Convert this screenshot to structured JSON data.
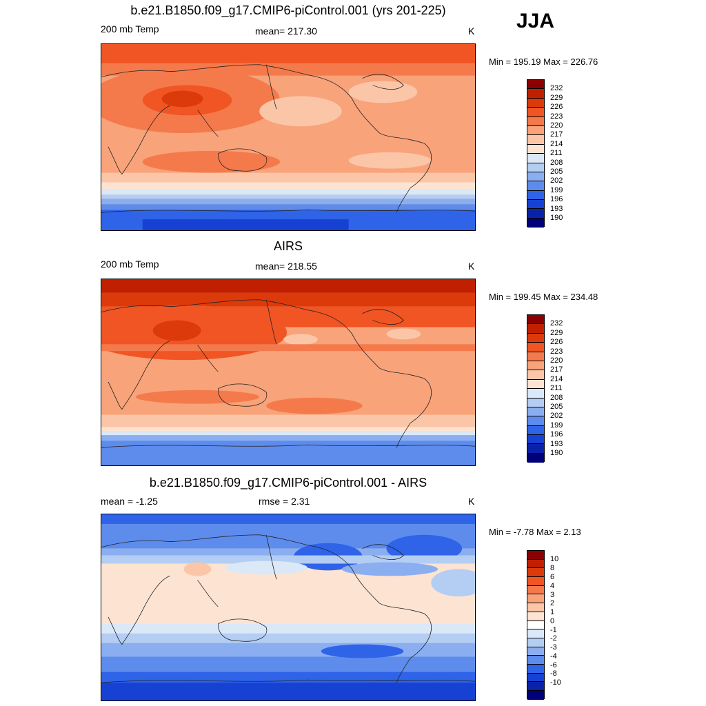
{
  "season": "JJA",
  "panels": [
    {
      "title": "b.e21.B1850.f09_g17.CMIP6-piControl.001 (yrs 201-225)",
      "left_label": "200 mb Temp",
      "center_label": "mean= 217.30",
      "units": "K",
      "minmax": "Min = 195.19 Max = 226.76",
      "colorbar_labels": [
        "232",
        "229",
        "226",
        "223",
        "220",
        "217",
        "214",
        "211",
        "208",
        "205",
        "202",
        "199",
        "196",
        "193",
        "190"
      ]
    },
    {
      "title": "AIRS",
      "left_label": "200 mb Temp",
      "center_label": "mean= 218.55",
      "units": "K",
      "minmax": "Min = 199.45 Max = 234.48",
      "colorbar_labels": [
        "232",
        "229",
        "226",
        "223",
        "220",
        "217",
        "214",
        "211",
        "208",
        "205",
        "202",
        "199",
        "196",
        "193",
        "190"
      ]
    },
    {
      "title": "b.e21.B1850.f09_g17.CMIP6-piControl.001 - AIRS",
      "left_label": "mean =  -1.25",
      "center_label": "rmse =   2.31",
      "units": "K",
      "minmax": "Min =  -7.78 Max =   2.13",
      "colorbar_labels": [
        "10",
        "8",
        "6",
        "4",
        "3",
        "2",
        "1",
        "0",
        "-1",
        "-2",
        "-3",
        "-4",
        "-6",
        "-8",
        "-10"
      ]
    }
  ],
  "colors": {
    "temp_scale": [
      "#8b0000",
      "#c02000",
      "#dd3a0c",
      "#f05523",
      "#f47a4c",
      "#f8a37a",
      "#fbc6a8",
      "#fde3d2",
      "#dbe8f8",
      "#b3cdf3",
      "#8aaef0",
      "#5e8cec",
      "#2f63e8",
      "#1741d3",
      "#0a22a8",
      "#00007a"
    ],
    "diff_scale": [
      "#8b0000",
      "#c02000",
      "#dd3a0c",
      "#f05523",
      "#f47a4c",
      "#f8a37a",
      "#fbc6a8",
      "#fde3d2",
      "#ffffff",
      "#dbe8f8",
      "#b3cdf3",
      "#8aaef0",
      "#5e8cec",
      "#2f63e8",
      "#1741d3",
      "#0a22a8",
      "#00007a"
    ]
  }
}
